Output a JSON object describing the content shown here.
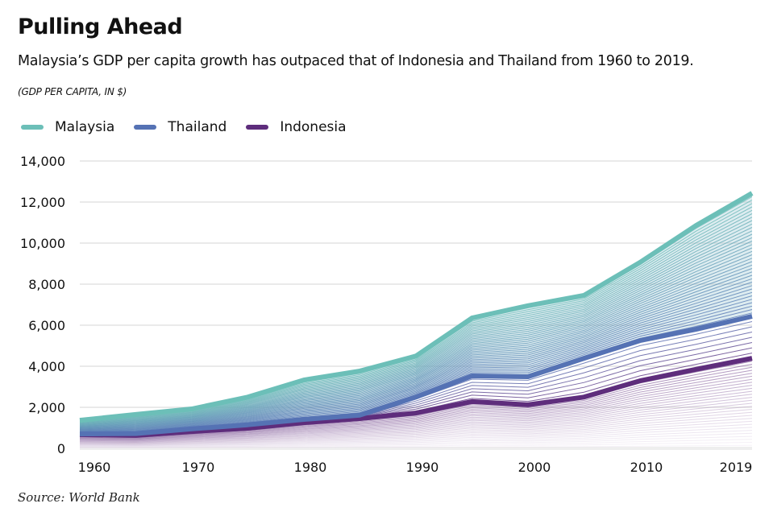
{
  "header": {
    "title": "Pulling Ahead",
    "subtitle": "Malaysia’s GDP per capita growth has outpaced that of Indonesia and Thailand from 1960 to 2019.",
    "units": "(GDP PER CAPITA, IN $)"
  },
  "legend": [
    {
      "label": "Malaysia",
      "color": "#6cbfb8"
    },
    {
      "label": "Thailand",
      "color": "#5572b4"
    },
    {
      "label": "Indonesia",
      "color": "#5e2d7c"
    }
  ],
  "source": "Source: World Bank",
  "chart_data": {
    "type": "line",
    "title": "Pulling Ahead",
    "subtitle": "Malaysia’s GDP per capita growth has outpaced that of Indonesia and Thailand from 1960 to 2019.",
    "ylabel": "(GDP PER CAPITA, IN $)",
    "xlabel": "",
    "x": [
      1960,
      1965,
      1970,
      1975,
      1980,
      1985,
      1990,
      1995,
      2000,
      2005,
      2010,
      2015,
      2019
    ],
    "xticks": [
      "1960",
      "1970",
      "1980",
      "1990",
      "2000",
      "2010",
      "2019"
    ],
    "xtick_years": [
      1960,
      1970,
      1980,
      1990,
      2000,
      2010,
      2019
    ],
    "yticks": [
      "0",
      "2,000",
      "4,000",
      "6,000",
      "8,000",
      "10,000",
      "12,000",
      "14,000"
    ],
    "ytick_values": [
      0,
      2000,
      4000,
      6000,
      8000,
      10000,
      12000,
      14000
    ],
    "ylim": [
      0,
      14000
    ],
    "grid": true,
    "legend_position": "top-left",
    "series": [
      {
        "name": "Malaysia",
        "color": "#6cbfb8",
        "values": [
          1370,
          1650,
          1920,
          2500,
          3330,
          3770,
          4500,
          6350,
          6950,
          7450,
          9060,
          10860,
          12430
        ]
      },
      {
        "name": "Thailand",
        "color": "#5572b4",
        "values": [
          700,
          720,
          950,
          1150,
          1410,
          1620,
          2500,
          3530,
          3490,
          4390,
          5250,
          5800,
          6430
        ]
      },
      {
        "name": "Indonesia",
        "color": "#5e2d7c",
        "values": [
          670,
          630,
          820,
          980,
          1250,
          1450,
          1720,
          2280,
          2120,
          2500,
          3290,
          3850,
          4390
        ]
      }
    ],
    "annotations": []
  }
}
